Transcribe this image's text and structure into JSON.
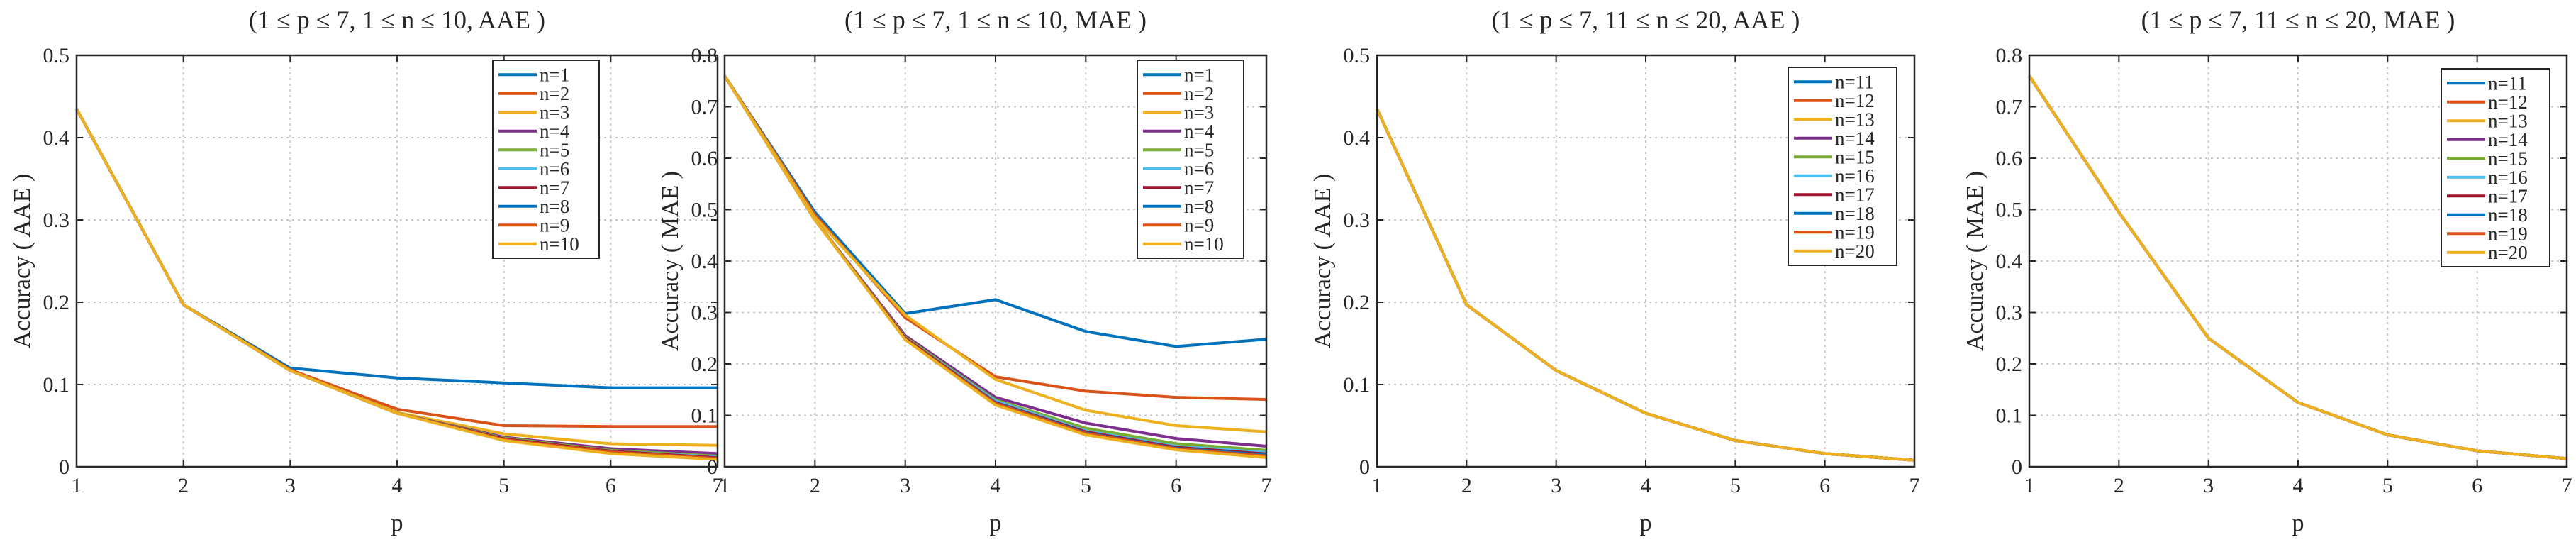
{
  "chart_data": [
    {
      "type": "line",
      "title": "(1 ≤ p ≤ 7, 1 ≤ n ≤ 10, AAE )",
      "xlabel": "p",
      "ylabel": "Accuracy ( AAE )",
      "xlim": [
        1,
        7
      ],
      "ylim": [
        0,
        0.5
      ],
      "yticks": [
        "0",
        "0.1",
        "0.2",
        "0.3",
        "0.4",
        "0.5"
      ],
      "xticks": [
        "1",
        "2",
        "3",
        "4",
        "5",
        "6",
        "7"
      ],
      "grid": true,
      "legend_position": "top-right",
      "x": [
        1,
        2,
        3,
        4,
        5,
        6,
        7
      ],
      "series": [
        {
          "name": "n=1",
          "color": "#0072BD",
          "values": [
            0.435,
            0.197,
            0.12,
            0.108,
            0.102,
            0.096,
            0.096
          ]
        },
        {
          "name": "n=2",
          "color": "#D95319",
          "values": [
            0.435,
            0.197,
            0.118,
            0.07,
            0.05,
            0.049,
            0.049
          ]
        },
        {
          "name": "n=3",
          "color": "#EDB120",
          "values": [
            0.435,
            0.197,
            0.117,
            0.066,
            0.04,
            0.028,
            0.026
          ]
        },
        {
          "name": "n=4",
          "color": "#7E2F8E",
          "values": [
            0.435,
            0.197,
            0.117,
            0.065,
            0.036,
            0.022,
            0.016
          ]
        },
        {
          "name": "n=5",
          "color": "#77AC30",
          "values": [
            0.435,
            0.197,
            0.117,
            0.065,
            0.035,
            0.02,
            0.013
          ]
        },
        {
          "name": "n=6",
          "color": "#4DBEEE",
          "values": [
            0.435,
            0.197,
            0.117,
            0.065,
            0.034,
            0.019,
            0.012
          ]
        },
        {
          "name": "n=7",
          "color": "#A2142F",
          "values": [
            0.435,
            0.197,
            0.117,
            0.065,
            0.034,
            0.019,
            0.011
          ]
        },
        {
          "name": "n=8",
          "color": "#0072BD",
          "values": [
            0.435,
            0.197,
            0.117,
            0.065,
            0.033,
            0.018,
            0.01
          ]
        },
        {
          "name": "n=9",
          "color": "#D95319",
          "values": [
            0.435,
            0.197,
            0.117,
            0.065,
            0.033,
            0.018,
            0.01
          ]
        },
        {
          "name": "n=10",
          "color": "#EDB120",
          "values": [
            0.435,
            0.197,
            0.117,
            0.065,
            0.032,
            0.016,
            0.009
          ]
        }
      ]
    },
    {
      "type": "line",
      "title": "(1 ≤ p ≤ 7, 1 ≤ n ≤ 10, MAE )",
      "xlabel": "p",
      "ylabel": "Accuracy ( MAE )",
      "xlim": [
        1,
        7
      ],
      "ylim": [
        0,
        0.8
      ],
      "yticks": [
        "0",
        "0.1",
        "0.2",
        "0.3",
        "0.4",
        "0.5",
        "0.6",
        "0.7",
        "0.8"
      ],
      "xticks": [
        "1",
        "2",
        "3",
        "4",
        "5",
        "6",
        "7"
      ],
      "grid": true,
      "legend_position": "top-right",
      "x": [
        1,
        2,
        3,
        4,
        5,
        6,
        7
      ],
      "series": [
        {
          "name": "n=1",
          "color": "#0072BD",
          "values": [
            0.76,
            0.495,
            0.298,
            0.325,
            0.263,
            0.234,
            0.248
          ]
        },
        {
          "name": "n=2",
          "color": "#D95319",
          "values": [
            0.76,
            0.49,
            0.29,
            0.175,
            0.147,
            0.135,
            0.131
          ]
        },
        {
          "name": "n=3",
          "color": "#EDB120",
          "values": [
            0.76,
            0.485,
            0.295,
            0.17,
            0.11,
            0.08,
            0.068
          ]
        },
        {
          "name": "n=4",
          "color": "#7E2F8E",
          "values": [
            0.76,
            0.48,
            0.255,
            0.135,
            0.085,
            0.055,
            0.04
          ]
        },
        {
          "name": "n=5",
          "color": "#77AC30",
          "values": [
            0.76,
            0.48,
            0.252,
            0.13,
            0.075,
            0.045,
            0.032
          ]
        },
        {
          "name": "n=6",
          "color": "#4DBEEE",
          "values": [
            0.76,
            0.48,
            0.25,
            0.128,
            0.07,
            0.04,
            0.028
          ]
        },
        {
          "name": "n=7",
          "color": "#A2142F",
          "values": [
            0.76,
            0.48,
            0.25,
            0.125,
            0.068,
            0.038,
            0.025
          ]
        },
        {
          "name": "n=8",
          "color": "#0072BD",
          "values": [
            0.76,
            0.48,
            0.248,
            0.124,
            0.066,
            0.036,
            0.023
          ]
        },
        {
          "name": "n=9",
          "color": "#D95319",
          "values": [
            0.76,
            0.48,
            0.248,
            0.123,
            0.065,
            0.035,
            0.021
          ]
        },
        {
          "name": "n=10",
          "color": "#EDB120",
          "values": [
            0.76,
            0.48,
            0.247,
            0.12,
            0.062,
            0.033,
            0.018
          ]
        }
      ]
    },
    {
      "type": "line",
      "title": "(1 ≤ p ≤ 7, 11 ≤ n ≤ 20, AAE )",
      "xlabel": "p",
      "ylabel": "Accuracy ( AAE )",
      "xlim": [
        1,
        7
      ],
      "ylim": [
        0,
        0.5
      ],
      "yticks": [
        "0",
        "0.1",
        "0.2",
        "0.3",
        "0.4",
        "0.5"
      ],
      "xticks": [
        "1",
        "2",
        "3",
        "4",
        "5",
        "6",
        "7"
      ],
      "grid": true,
      "legend_position": "top-right",
      "x": [
        1,
        2,
        3,
        4,
        5,
        6,
        7
      ],
      "series": [
        {
          "name": "n=11",
          "color": "#0072BD",
          "values": [
            0.435,
            0.197,
            0.117,
            0.065,
            0.032,
            0.016,
            0.008
          ]
        },
        {
          "name": "n=12",
          "color": "#D95319",
          "values": [
            0.435,
            0.197,
            0.117,
            0.065,
            0.032,
            0.016,
            0.008
          ]
        },
        {
          "name": "n=13",
          "color": "#EDB120",
          "values": [
            0.435,
            0.197,
            0.117,
            0.065,
            0.032,
            0.016,
            0.008
          ]
        },
        {
          "name": "n=14",
          "color": "#7E2F8E",
          "values": [
            0.435,
            0.197,
            0.117,
            0.065,
            0.032,
            0.016,
            0.008
          ]
        },
        {
          "name": "n=15",
          "color": "#77AC30",
          "values": [
            0.435,
            0.197,
            0.117,
            0.065,
            0.032,
            0.016,
            0.008
          ]
        },
        {
          "name": "n=16",
          "color": "#4DBEEE",
          "values": [
            0.435,
            0.197,
            0.117,
            0.065,
            0.032,
            0.016,
            0.008
          ]
        },
        {
          "name": "n=17",
          "color": "#A2142F",
          "values": [
            0.435,
            0.197,
            0.117,
            0.065,
            0.032,
            0.016,
            0.008
          ]
        },
        {
          "name": "n=18",
          "color": "#0072BD",
          "values": [
            0.435,
            0.197,
            0.117,
            0.065,
            0.032,
            0.016,
            0.008
          ]
        },
        {
          "name": "n=19",
          "color": "#D95319",
          "values": [
            0.435,
            0.197,
            0.117,
            0.065,
            0.032,
            0.016,
            0.008
          ]
        },
        {
          "name": "n=20",
          "color": "#EDB120",
          "values": [
            0.435,
            0.197,
            0.117,
            0.065,
            0.032,
            0.016,
            0.008
          ]
        }
      ]
    },
    {
      "type": "line",
      "title": "(1 ≤ p ≤ 7, 11 ≤ n ≤ 20, MAE )",
      "xlabel": "p",
      "ylabel": "Accuracy ( MAE )",
      "xlim": [
        1,
        7
      ],
      "ylim": [
        0,
        0.8
      ],
      "yticks": [
        "0",
        "0.1",
        "0.2",
        "0.3",
        "0.4",
        "0.5",
        "0.6",
        "0.7",
        "0.8"
      ],
      "xticks": [
        "1",
        "2",
        "3",
        "4",
        "5",
        "6",
        "7"
      ],
      "grid": true,
      "legend_position": "top-right",
      "x": [
        1,
        2,
        3,
        4,
        5,
        6,
        7
      ],
      "series": [
        {
          "name": "n=11",
          "color": "#0072BD",
          "values": [
            0.76,
            0.495,
            0.25,
            0.125,
            0.062,
            0.031,
            0.016
          ]
        },
        {
          "name": "n=12",
          "color": "#D95319",
          "values": [
            0.76,
            0.495,
            0.25,
            0.125,
            0.062,
            0.031,
            0.016
          ]
        },
        {
          "name": "n=13",
          "color": "#EDB120",
          "values": [
            0.76,
            0.495,
            0.25,
            0.125,
            0.062,
            0.031,
            0.016
          ]
        },
        {
          "name": "n=14",
          "color": "#7E2F8E",
          "values": [
            0.76,
            0.495,
            0.25,
            0.125,
            0.062,
            0.031,
            0.016
          ]
        },
        {
          "name": "n=15",
          "color": "#77AC30",
          "values": [
            0.76,
            0.495,
            0.25,
            0.125,
            0.062,
            0.031,
            0.016
          ]
        },
        {
          "name": "n=16",
          "color": "#4DBEEE",
          "values": [
            0.76,
            0.495,
            0.25,
            0.125,
            0.062,
            0.031,
            0.016
          ]
        },
        {
          "name": "n=17",
          "color": "#A2142F",
          "values": [
            0.76,
            0.495,
            0.25,
            0.125,
            0.062,
            0.031,
            0.016
          ]
        },
        {
          "name": "n=18",
          "color": "#0072BD",
          "values": [
            0.76,
            0.495,
            0.25,
            0.125,
            0.062,
            0.031,
            0.016
          ]
        },
        {
          "name": "n=19",
          "color": "#D95319",
          "values": [
            0.76,
            0.495,
            0.25,
            0.125,
            0.062,
            0.031,
            0.016
          ]
        },
        {
          "name": "n=20",
          "color": "#EDB120",
          "values": [
            0.76,
            0.495,
            0.25,
            0.125,
            0.062,
            0.031,
            0.016
          ]
        }
      ]
    }
  ]
}
